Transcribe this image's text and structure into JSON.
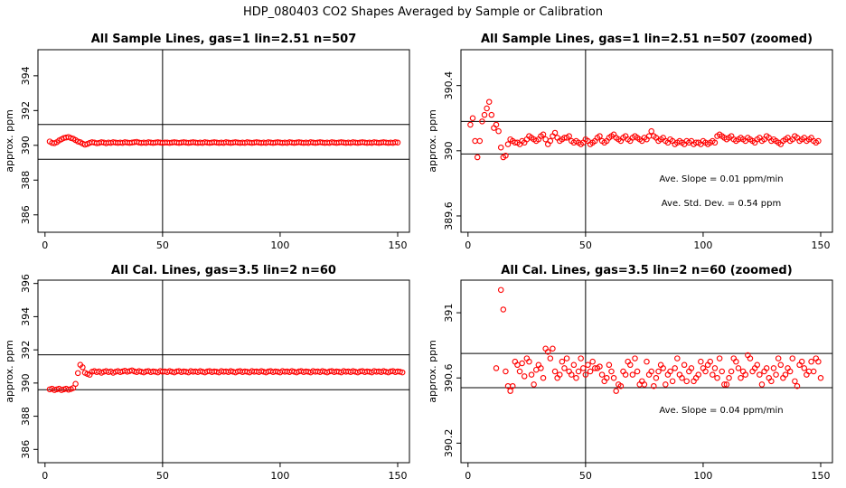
{
  "page": {
    "title": "HDP_080403  CO2 Shapes Averaged by Sample or Calibration"
  },
  "colors": {
    "points": "#ff0000",
    "axes": "#000000",
    "background": "#ffffff"
  },
  "chart_data": [
    {
      "type": "scatter",
      "title": "All Sample Lines, gas=1 lin=2.51 n=507",
      "xlabel": "",
      "ylabel": "approx. ppm",
      "xlim": [
        -3,
        155
      ],
      "ylim": [
        385,
        395.5
      ],
      "xticks": [
        0,
        50,
        100,
        150
      ],
      "yticks": [
        386,
        388,
        390,
        392,
        394
      ],
      "vline": 50,
      "hlines": [
        389.2,
        391.2
      ],
      "annotations": [],
      "x_start": 2,
      "x_step": 1,
      "y": [
        390.22,
        390.14,
        390.12,
        390.18,
        390.28,
        390.35,
        390.42,
        390.45,
        390.48,
        390.42,
        390.38,
        390.3,
        390.22,
        390.18,
        390.1,
        390.04,
        390.08,
        390.14,
        390.18,
        390.16,
        390.12,
        390.14,
        390.18,
        390.16,
        390.12,
        390.16,
        390.14,
        390.18,
        390.16,
        390.14,
        390.16,
        390.14,
        390.18,
        390.16,
        390.14,
        390.16,
        390.18,
        390.2,
        390.16,
        390.14,
        390.16,
        390.14,
        390.18,
        390.16,
        390.14,
        390.16,
        390.18,
        390.16,
        390.14,
        390.16,
        390.16,
        390.14,
        390.16,
        390.18,
        390.16,
        390.14,
        390.16,
        390.18,
        390.16,
        390.14,
        390.16,
        390.18,
        390.16,
        390.14,
        390.16,
        390.14,
        390.18,
        390.16,
        390.14,
        390.16,
        390.18,
        390.16,
        390.14,
        390.16,
        390.14,
        390.18,
        390.16,
        390.14,
        390.16,
        390.18,
        390.16,
        390.14,
        390.16,
        390.14,
        390.18,
        390.16,
        390.14,
        390.16,
        390.18,
        390.16,
        390.14,
        390.16,
        390.14,
        390.18,
        390.16,
        390.14,
        390.16,
        390.18,
        390.16,
        390.14,
        390.16,
        390.14,
        390.18,
        390.16,
        390.14,
        390.16,
        390.18,
        390.16,
        390.14,
        390.16,
        390.14,
        390.18,
        390.16,
        390.14,
        390.16,
        390.18,
        390.16,
        390.14,
        390.16,
        390.14,
        390.18,
        390.16,
        390.14,
        390.16,
        390.18,
        390.16,
        390.14,
        390.16,
        390.14,
        390.18,
        390.16,
        390.14,
        390.16,
        390.18,
        390.16,
        390.14,
        390.16,
        390.14,
        390.18,
        390.16,
        390.14,
        390.16,
        390.18,
        390.16,
        390.14,
        390.16,
        390.14,
        390.18,
        390.16
      ]
    },
    {
      "type": "scatter",
      "title": "All Sample Lines, gas=1 lin=2.51 n=507 (zoomed)",
      "xlabel": "",
      "ylabel": "approx. ppm",
      "xlim": [
        -3,
        155
      ],
      "ylim": [
        389.5,
        390.62
      ],
      "xticks": [
        0,
        50,
        100,
        150
      ],
      "yticks": [
        389.6,
        390.0,
        390.4
      ],
      "vline": 50,
      "hlines": [
        390.18,
        389.98
      ],
      "annotations": [
        "Ave. Slope =  0.01  ppm/min",
        "Ave. Std. Dev. =  0.54  ppm"
      ],
      "x_start": 1,
      "x_step": 1,
      "y": [
        390.16,
        390.2,
        390.06,
        389.96,
        390.06,
        390.18,
        390.22,
        390.26,
        390.3,
        390.22,
        390.14,
        390.16,
        390.12,
        390.02,
        389.96,
        389.97,
        390.04,
        390.07,
        390.06,
        390.05,
        390.05,
        390.04,
        390.06,
        390.05,
        390.07,
        390.09,
        390.08,
        390.07,
        390.06,
        390.07,
        390.09,
        390.1,
        390.07,
        390.04,
        390.06,
        390.09,
        390.11,
        390.08,
        390.06,
        390.07,
        390.08,
        390.08,
        390.09,
        390.06,
        390.05,
        390.06,
        390.05,
        390.04,
        390.05,
        390.07,
        390.06,
        390.04,
        390.05,
        390.06,
        390.08,
        390.09,
        390.06,
        390.05,
        390.06,
        390.08,
        390.09,
        390.1,
        390.08,
        390.07,
        390.06,
        390.08,
        390.09,
        390.07,
        390.06,
        390.08,
        390.09,
        390.08,
        390.07,
        390.06,
        390.08,
        390.07,
        390.09,
        390.12,
        390.09,
        390.08,
        390.06,
        390.07,
        390.08,
        390.06,
        390.05,
        390.07,
        390.06,
        390.04,
        390.05,
        390.06,
        390.05,
        390.04,
        390.06,
        390.05,
        390.06,
        390.04,
        390.05,
        390.05,
        390.04,
        390.06,
        390.05,
        390.04,
        390.05,
        390.06,
        390.05,
        390.09,
        390.1,
        390.09,
        390.08,
        390.07,
        390.08,
        390.09,
        390.07,
        390.06,
        390.07,
        390.08,
        390.07,
        390.06,
        390.08,
        390.07,
        390.06,
        390.05,
        390.07,
        390.08,
        390.06,
        390.07,
        390.09,
        390.08,
        390.06,
        390.07,
        390.06,
        390.05,
        390.04,
        390.06,
        390.07,
        390.08,
        390.06,
        390.07,
        390.09,
        390.08,
        390.06,
        390.07,
        390.08,
        390.06,
        390.07,
        390.08,
        390.06,
        390.05,
        390.06
      ]
    },
    {
      "type": "scatter",
      "title": "All Cal. Lines, gas=3.5 lin=2 n=60",
      "xlabel": "",
      "ylabel": "approx. ppm",
      "xlim": [
        -3,
        155
      ],
      "ylim": [
        385.2,
        396.2
      ],
      "xticks": [
        0,
        50,
        100,
        150
      ],
      "yticks": [
        386,
        388,
        390,
        392,
        394,
        396
      ],
      "vline": 50,
      "hlines": [
        391.7,
        389.6
      ],
      "annotations": [],
      "x_start": 2,
      "x_step": 1,
      "y": [
        389.62,
        389.66,
        389.58,
        389.62,
        389.66,
        389.58,
        389.62,
        389.66,
        389.6,
        389.64,
        389.7,
        389.95,
        390.6,
        391.1,
        390.95,
        390.62,
        390.55,
        390.5,
        390.68,
        390.72,
        390.66,
        390.7,
        390.62,
        390.68,
        390.72,
        390.66,
        390.7,
        390.62,
        390.68,
        390.72,
        390.66,
        390.7,
        390.74,
        390.68,
        390.72,
        390.76,
        390.7,
        390.66,
        390.72,
        390.68,
        390.64,
        390.7,
        390.72,
        390.66,
        390.7,
        390.68,
        390.64,
        390.72,
        390.68,
        390.7,
        390.66,
        390.72,
        390.68,
        390.64,
        390.7,
        390.72,
        390.66,
        390.7,
        390.68,
        390.64,
        390.72,
        390.68,
        390.7,
        390.66,
        390.72,
        390.68,
        390.64,
        390.7,
        390.72,
        390.66,
        390.7,
        390.68,
        390.64,
        390.72,
        390.68,
        390.7,
        390.66,
        390.72,
        390.68,
        390.64,
        390.7,
        390.72,
        390.66,
        390.7,
        390.68,
        390.64,
        390.72,
        390.68,
        390.7,
        390.66,
        390.72,
        390.68,
        390.64,
        390.7,
        390.72,
        390.66,
        390.7,
        390.68,
        390.64,
        390.72,
        390.68,
        390.7,
        390.66,
        390.72,
        390.68,
        390.64,
        390.7,
        390.72,
        390.66,
        390.7,
        390.68,
        390.64,
        390.72,
        390.68,
        390.7,
        390.66,
        390.72,
        390.68,
        390.64,
        390.7,
        390.72,
        390.66,
        390.7,
        390.68,
        390.64,
        390.72,
        390.68,
        390.7,
        390.66,
        390.72,
        390.68,
        390.64,
        390.7,
        390.72,
        390.66,
        390.7,
        390.68,
        390.64,
        390.72,
        390.68,
        390.7,
        390.66,
        390.72,
        390.68,
        390.64,
        390.7,
        390.72,
        390.66,
        390.7,
        390.68,
        390.64
      ]
    },
    {
      "type": "scatter",
      "title": "All Cal. Lines, gas=3.5 lin=2 n=60 (zoomed)",
      "xlabel": "",
      "ylabel": "approx. ppm",
      "xlim": [
        -3,
        155
      ],
      "ylim": [
        390.08,
        391.2
      ],
      "xticks": [
        0,
        50,
        100,
        150
      ],
      "yticks": [
        390.2,
        390.6,
        391.0
      ],
      "vline": 50,
      "hlines": [
        390.75,
        390.54
      ],
      "annotations": [
        "Ave. Slope =  0.04  ppm/min"
      ],
      "points": [
        [
          12,
          390.66
        ],
        [
          14,
          391.14
        ],
        [
          15,
          391.02
        ],
        [
          16,
          390.64
        ],
        [
          17,
          390.55
        ],
        [
          18,
          390.52
        ],
        [
          19,
          390.55
        ],
        [
          20,
          390.7
        ],
        [
          21,
          390.68
        ],
        [
          22,
          390.64
        ],
        [
          23,
          390.69
        ],
        [
          24,
          390.61
        ],
        [
          25,
          390.72
        ],
        [
          26,
          390.7
        ],
        [
          27,
          390.62
        ],
        [
          28,
          390.56
        ],
        [
          29,
          390.65
        ],
        [
          30,
          390.68
        ],
        [
          31,
          390.66
        ],
        [
          32,
          390.6
        ],
        [
          33,
          390.78
        ],
        [
          34,
          390.76
        ],
        [
          35,
          390.72
        ],
        [
          36,
          390.78
        ],
        [
          37,
          390.64
        ],
        [
          38,
          390.6
        ],
        [
          39,
          390.62
        ],
        [
          40,
          390.7
        ],
        [
          41,
          390.66
        ],
        [
          42,
          390.72
        ],
        [
          43,
          390.64
        ],
        [
          44,
          390.62
        ],
        [
          45,
          390.68
        ],
        [
          46,
          390.6
        ],
        [
          47,
          390.64
        ],
        [
          48,
          390.72
        ],
        [
          49,
          390.66
        ],
        [
          50,
          390.62
        ],
        [
          51,
          390.68
        ],
        [
          52,
          390.64
        ],
        [
          53,
          390.7
        ],
        [
          54,
          390.66
        ],
        [
          55,
          390.66
        ],
        [
          56,
          390.67
        ],
        [
          57,
          390.62
        ],
        [
          58,
          390.58
        ],
        [
          59,
          390.6
        ],
        [
          60,
          390.68
        ],
        [
          61,
          390.64
        ],
        [
          62,
          390.6
        ],
        [
          63,
          390.52
        ],
        [
          64,
          390.56
        ],
        [
          65,
          390.55
        ],
        [
          66,
          390.64
        ],
        [
          67,
          390.62
        ],
        [
          68,
          390.7
        ],
        [
          69,
          390.68
        ],
        [
          70,
          390.62
        ],
        [
          71,
          390.72
        ],
        [
          72,
          390.64
        ],
        [
          73,
          390.56
        ],
        [
          74,
          390.58
        ],
        [
          75,
          390.56
        ],
        [
          76,
          390.7
        ],
        [
          77,
          390.62
        ],
        [
          78,
          390.64
        ],
        [
          79,
          390.55
        ],
        [
          80,
          390.6
        ],
        [
          81,
          390.64
        ],
        [
          82,
          390.68
        ],
        [
          83,
          390.66
        ],
        [
          84,
          390.56
        ],
        [
          85,
          390.62
        ],
        [
          86,
          390.64
        ],
        [
          87,
          390.58
        ],
        [
          88,
          390.66
        ],
        [
          89,
          390.72
        ],
        [
          90,
          390.62
        ],
        [
          91,
          390.6
        ],
        [
          92,
          390.68
        ],
        [
          93,
          390.58
        ],
        [
          94,
          390.64
        ],
        [
          95,
          390.66
        ],
        [
          96,
          390.58
        ],
        [
          97,
          390.6
        ],
        [
          98,
          390.62
        ],
        [
          99,
          390.7
        ],
        [
          100,
          390.66
        ],
        [
          101,
          390.64
        ],
        [
          102,
          390.68
        ],
        [
          103,
          390.7
        ],
        [
          104,
          390.62
        ],
        [
          105,
          390.66
        ],
        [
          106,
          390.6
        ],
        [
          107,
          390.72
        ],
        [
          108,
          390.64
        ],
        [
          109,
          390.56
        ],
        [
          110,
          390.56
        ],
        [
          111,
          390.6
        ],
        [
          112,
          390.64
        ],
        [
          113,
          390.72
        ],
        [
          114,
          390.7
        ],
        [
          115,
          390.66
        ],
        [
          116,
          390.6
        ],
        [
          117,
          390.64
        ],
        [
          118,
          390.62
        ],
        [
          119,
          390.74
        ],
        [
          120,
          390.72
        ],
        [
          121,
          390.64
        ],
        [
          122,
          390.66
        ],
        [
          123,
          390.68
        ],
        [
          124,
          390.62
        ],
        [
          125,
          390.56
        ],
        [
          126,
          390.64
        ],
        [
          127,
          390.66
        ],
        [
          128,
          390.6
        ],
        [
          129,
          390.58
        ],
        [
          130,
          390.66
        ],
        [
          131,
          390.62
        ],
        [
          132,
          390.72
        ],
        [
          133,
          390.68
        ],
        [
          134,
          390.6
        ],
        [
          135,
          390.62
        ],
        [
          136,
          390.66
        ],
        [
          137,
          390.64
        ],
        [
          138,
          390.72
        ],
        [
          139,
          390.58
        ],
        [
          140,
          390.55
        ],
        [
          141,
          390.68
        ],
        [
          142,
          390.7
        ],
        [
          143,
          390.66
        ],
        [
          144,
          390.62
        ],
        [
          145,
          390.64
        ],
        [
          146,
          390.7
        ],
        [
          147,
          390.64
        ],
        [
          148,
          390.72
        ],
        [
          149,
          390.7
        ],
        [
          150,
          390.6
        ]
      ]
    }
  ]
}
